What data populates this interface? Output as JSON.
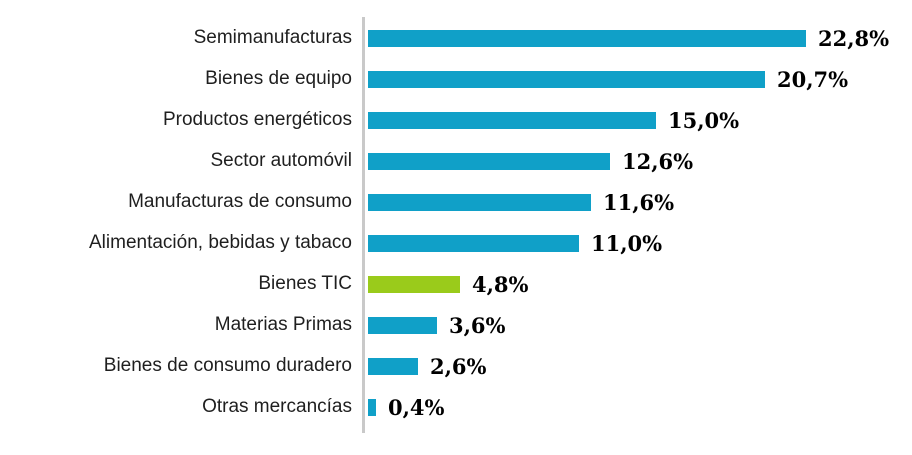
{
  "chart_data": {
    "type": "bar",
    "orientation": "horizontal",
    "title": "",
    "xlabel": "",
    "ylabel": "",
    "xlim": [
      0,
      24
    ],
    "grid": false,
    "legend": false,
    "categories": [
      "Semimanufacturas",
      "Bienes de equipo",
      "Productos energéticos",
      "Sector automóvil",
      "Manufacturas de consumo",
      "Alimentación, bebidas y tabaco",
      "Bienes TIC",
      "Materias Primas",
      "Bienes de consumo duradero",
      "Otras mercancías"
    ],
    "values": [
      22.8,
      20.7,
      15.0,
      12.6,
      11.6,
      11.0,
      4.8,
      3.6,
      2.6,
      0.4
    ],
    "value_labels": [
      "22,8%",
      "20,7%",
      "15,0%",
      "12,6%",
      "11,6%",
      "11,0%",
      "4,8%",
      "3,6%",
      "2,6%",
      "0,4%"
    ],
    "highlight_index": 6
  },
  "colors": {
    "bar_default": "#10A0C8",
    "bar_highlight": "#9ACB1B",
    "axis_line": "#C9C9C9",
    "category_text": "#1F1F1F",
    "value_text": "#000000",
    "background": "#FFFFFF"
  }
}
